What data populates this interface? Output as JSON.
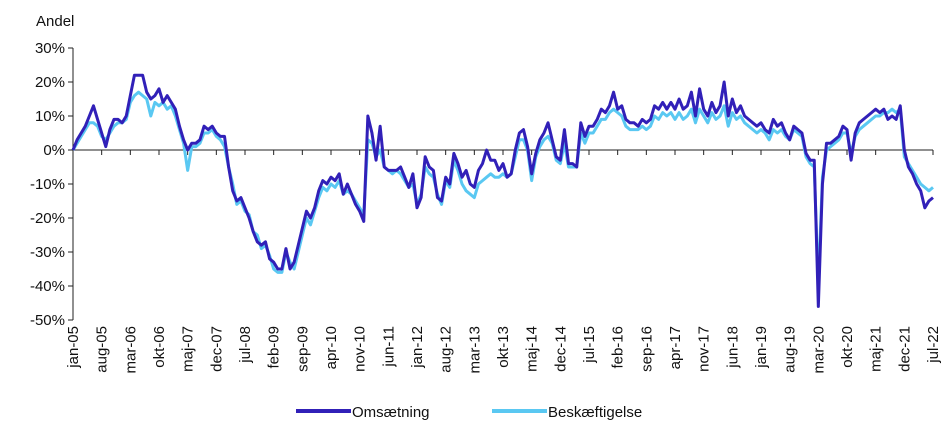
{
  "chart_data": {
    "type": "line",
    "y_label": "Andel",
    "categories": [
      "jan-05",
      null,
      null,
      null,
      null,
      null,
      null,
      "aug-05",
      null,
      null,
      null,
      null,
      null,
      null,
      "mar-06",
      null,
      null,
      null,
      null,
      null,
      null,
      "okt-06",
      null,
      null,
      null,
      null,
      null,
      null,
      "maj-07",
      null,
      null,
      null,
      null,
      null,
      null,
      "dec-07",
      null,
      null,
      null,
      null,
      null,
      null,
      "jul-08",
      null,
      null,
      null,
      null,
      null,
      null,
      "feb-09",
      null,
      null,
      null,
      null,
      null,
      null,
      "sep-09",
      null,
      null,
      null,
      null,
      null,
      null,
      "apr-10",
      null,
      null,
      null,
      null,
      null,
      null,
      "nov-10",
      null,
      null,
      null,
      null,
      null,
      null,
      "jun-11",
      null,
      null,
      null,
      null,
      null,
      null,
      "jan-12",
      null,
      null,
      null,
      null,
      null,
      null,
      "aug-12",
      null,
      null,
      null,
      null,
      null,
      null,
      "mar-13",
      null,
      null,
      null,
      null,
      null,
      null,
      "okt-13",
      null,
      null,
      null,
      null,
      null,
      null,
      "maj-14",
      null,
      null,
      null,
      null,
      null,
      null,
      "dec-14",
      null,
      null,
      null,
      null,
      null,
      null,
      "jul-15",
      null,
      null,
      null,
      null,
      null,
      null,
      "feb-16",
      null,
      null,
      null,
      null,
      null,
      null,
      "sep-16",
      null,
      null,
      null,
      null,
      null,
      null,
      "apr-17",
      null,
      null,
      null,
      null,
      null,
      null,
      "nov-17",
      null,
      null,
      null,
      null,
      null,
      null,
      "jun-18",
      null,
      null,
      null,
      null,
      null,
      null,
      "jan-19",
      null,
      null,
      null,
      null,
      null,
      null,
      "aug-19",
      null,
      null,
      null,
      null,
      null,
      null,
      "mar-20",
      null,
      null,
      null,
      null,
      null,
      null,
      "okt-20",
      null,
      null,
      null,
      null,
      null,
      null,
      "maj-21",
      null,
      null,
      null,
      null,
      null,
      null,
      "dec-21",
      null,
      null,
      null,
      null,
      null,
      null,
      "jul-22"
    ],
    "series": [
      {
        "name": "Omsætning",
        "color": "#3120b8",
        "values": [
          0,
          3,
          5,
          7,
          10,
          13,
          9,
          5,
          1,
          6,
          9,
          9,
          8,
          10,
          16,
          22,
          22,
          22,
          17,
          15,
          16,
          18,
          14,
          16,
          14,
          12,
          7,
          3,
          0,
          2,
          2,
          3,
          7,
          6,
          7,
          5,
          4,
          4,
          -5,
          -12,
          -15,
          -14,
          -17,
          -20,
          -24,
          -27,
          -28,
          -27,
          -32,
          -33,
          -35,
          -35,
          -29,
          -35,
          -33,
          -28,
          -23,
          -18,
          -20,
          -17,
          -12,
          -9,
          -10,
          -8,
          -9,
          -7,
          -13,
          -10,
          -13,
          -16,
          -18,
          -21,
          10,
          5,
          -3,
          7,
          -5,
          -6,
          -6,
          -6,
          -5,
          -8,
          -11,
          -7,
          -17,
          -14,
          -2,
          -5,
          -6,
          -14,
          -15,
          -8,
          -10,
          -1,
          -4,
          -8,
          -6,
          -10,
          -11,
          -6,
          -4,
          0,
          -3,
          -3,
          -6,
          -4,
          -8,
          -7,
          0,
          5,
          6,
          1,
          -7,
          -1,
          3,
          5,
          8,
          3,
          -2,
          -3,
          6,
          -4,
          -4,
          -5,
          8,
          4,
          7,
          7,
          9,
          12,
          11,
          13,
          17,
          12,
          13,
          9,
          8,
          8,
          7,
          9,
          8,
          9,
          13,
          12,
          14,
          12,
          14,
          12,
          15,
          12,
          13,
          17,
          10,
          18,
          12,
          10,
          14,
          11,
          13,
          20,
          10,
          15,
          11,
          13,
          10,
          9,
          8,
          7,
          8,
          6,
          5,
          9,
          7,
          8,
          5,
          3,
          7,
          6,
          5,
          -1,
          -3,
          -3,
          -46,
          -10,
          2,
          2,
          3,
          4,
          7,
          6,
          -3,
          5,
          8,
          9,
          10,
          11,
          12,
          11,
          12,
          9,
          10,
          9,
          13,
          0,
          -5,
          -7,
          -10,
          -12,
          -17,
          -15,
          -14
        ]
      },
      {
        "name": "Beskæftigelse",
        "color": "#5ac8f2",
        "values": [
          0,
          2,
          4,
          6,
          8,
          8,
          7,
          4,
          3,
          5,
          7,
          8,
          8,
          9,
          14,
          16,
          17,
          16,
          15,
          10,
          14,
          13,
          14,
          12,
          13,
          10,
          6,
          2,
          -6,
          1,
          1,
          2,
          5,
          5,
          6,
          4,
          3,
          1,
          -5,
          -10,
          -16,
          -15,
          -18,
          -19,
          -24,
          -25,
          -29,
          -28,
          -31,
          -35,
          -36,
          -36,
          -30,
          -33,
          -35,
          -30,
          -25,
          -20,
          -22,
          -18,
          -14,
          -11,
          -12,
          -10,
          -11,
          -9,
          -13,
          -12,
          -13,
          -15,
          -17,
          -19,
          3,
          2,
          -2,
          0,
          -5,
          -6,
          -7,
          -6,
          -7,
          -9,
          -11,
          -10,
          -16,
          -13,
          -5,
          -7,
          -8,
          -13,
          -16,
          -9,
          -11,
          -3,
          -6,
          -10,
          -12,
          -13,
          -14,
          -10,
          -9,
          -8,
          -7,
          -8,
          -8,
          -7,
          -8,
          -7,
          -2,
          3,
          3,
          0,
          -9,
          -2,
          1,
          3,
          4,
          2,
          -3,
          -4,
          2,
          -5,
          -5,
          -5,
          5,
          2,
          5,
          5,
          7,
          9,
          9,
          11,
          12,
          11,
          10,
          7,
          6,
          6,
          6,
          7,
          6,
          7,
          10,
          9,
          11,
          10,
          11,
          9,
          11,
          9,
          10,
          12,
          8,
          12,
          10,
          8,
          11,
          9,
          10,
          13,
          7,
          11,
          9,
          10,
          8,
          7,
          6,
          5,
          6,
          5,
          3,
          6,
          5,
          6,
          4,
          3,
          6,
          5,
          4,
          -2,
          -4,
          -5,
          -40,
          -8,
          0,
          1,
          2,
          3,
          5,
          5,
          -1,
          4,
          6,
          7,
          8,
          9,
          10,
          10,
          11,
          11,
          12,
          11,
          12,
          -2,
          -4,
          -6,
          -8,
          -10,
          -11,
          -12,
          -11
        ]
      }
    ],
    "ylim": [
      -50,
      30
    ],
    "yticks": [
      {
        "value": -50,
        "label": "-50%"
      },
      {
        "value": -40,
        "label": "-40%"
      },
      {
        "value": -30,
        "label": "-30%"
      },
      {
        "value": -20,
        "label": "-20%"
      },
      {
        "value": -10,
        "label": "-10%"
      },
      {
        "value": 0,
        "label": "0%"
      },
      {
        "value": 10,
        "label": "10%"
      },
      {
        "value": 20,
        "label": "20%"
      },
      {
        "value": 30,
        "label": "30%"
      }
    ],
    "legend": "bottom"
  }
}
